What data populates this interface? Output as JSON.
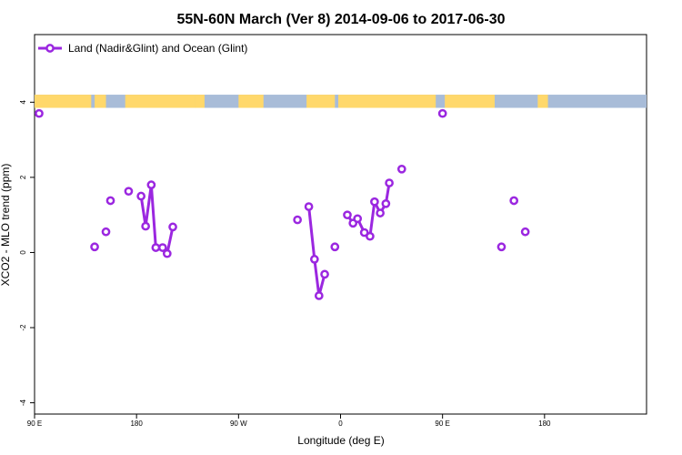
{
  "chart_data": {
    "type": "line",
    "title": "55N-60N March (Ver 8)   2014-09-06 to 2017-06-30",
    "xlabel": "Longitude (deg E)",
    "ylabel": "XCO2 - MLO trend (ppm)",
    "xlim": [
      90,
      630
    ],
    "ylim": [
      -4.3,
      5.8
    ],
    "x_ticks": [
      {
        "value": 90,
        "label": "90 E"
      },
      {
        "value": 180,
        "label": "180"
      },
      {
        "value": 270,
        "label": "90 W"
      },
      {
        "value": 360,
        "label": "0"
      },
      {
        "value": 450,
        "label": "90 E"
      },
      {
        "value": 540,
        "label": "180"
      }
    ],
    "y_ticks": [
      {
        "value": -4,
        "label": "-4"
      },
      {
        "value": -2,
        "label": "-2"
      },
      {
        "value": 0,
        "label": "0"
      },
      {
        "value": 2,
        "label": "2"
      },
      {
        "value": 4,
        "label": "4"
      }
    ],
    "legend": {
      "position": "top-left"
    },
    "colors": {
      "series": "#9b27e0",
      "land": "#ffd86b",
      "ocean": "#a8bcd8"
    },
    "map_strip": {
      "y_range": [
        3.85,
        4.2
      ],
      "note": "world map land/ocean strip across longitude",
      "land_lon_ranges": [
        [
          90,
          140
        ],
        [
          143,
          153
        ],
        [
          170,
          232
        ],
        [
          232,
          240
        ],
        [
          270,
          292
        ],
        [
          330,
          355
        ],
        [
          358,
          444
        ],
        [
          452,
          496
        ],
        [
          534,
          543
        ]
      ]
    },
    "series": [
      {
        "name": "Land (Nadir&Glint) and Ocean (Glint)",
        "segments": [
          [
            {
              "x": 94,
              "y": 3.7
            }
          ],
          [
            {
              "x": 143,
              "y": 0.15
            }
          ],
          [
            {
              "x": 157,
              "y": 1.38
            }
          ],
          [
            {
              "x": 173,
              "y": 1.63
            }
          ],
          [
            {
              "x": 184,
              "y": 1.5
            },
            {
              "x": 188,
              "y": 0.7
            },
            {
              "x": 193,
              "y": 1.8
            },
            {
              "x": 197,
              "y": 0.13
            },
            {
              "x": 203,
              "y": 0.13
            },
            {
              "x": 207,
              "y": -0.03
            },
            {
              "x": 212,
              "y": 0.68
            }
          ],
          [
            {
              "x": 153,
              "y": 0.55
            }
          ],
          [
            {
              "x": 322,
              "y": 0.87
            }
          ],
          [
            {
              "x": 332,
              "y": 1.22
            },
            {
              "x": 337,
              "y": -0.18
            },
            {
              "x": 341,
              "y": -1.15
            },
            {
              "x": 346,
              "y": -0.58
            }
          ],
          [
            {
              "x": 355,
              "y": 0.15
            }
          ],
          [
            {
              "x": 366,
              "y": 1.0
            },
            {
              "x": 371,
              "y": 0.78
            },
            {
              "x": 375,
              "y": 0.9
            },
            {
              "x": 381,
              "y": 0.53
            },
            {
              "x": 386,
              "y": 0.43
            },
            {
              "x": 390,
              "y": 1.35
            },
            {
              "x": 395,
              "y": 1.05
            },
            {
              "x": 400,
              "y": 1.3
            },
            {
              "x": 403,
              "y": 1.85
            }
          ],
          [
            {
              "x": 414,
              "y": 2.22
            }
          ],
          [
            {
              "x": 450,
              "y": 3.7
            }
          ],
          [
            {
              "x": 502,
              "y": 0.15
            }
          ],
          [
            {
              "x": 513,
              "y": 1.38
            }
          ],
          [
            {
              "x": 523,
              "y": 0.55
            }
          ]
        ]
      }
    ]
  }
}
